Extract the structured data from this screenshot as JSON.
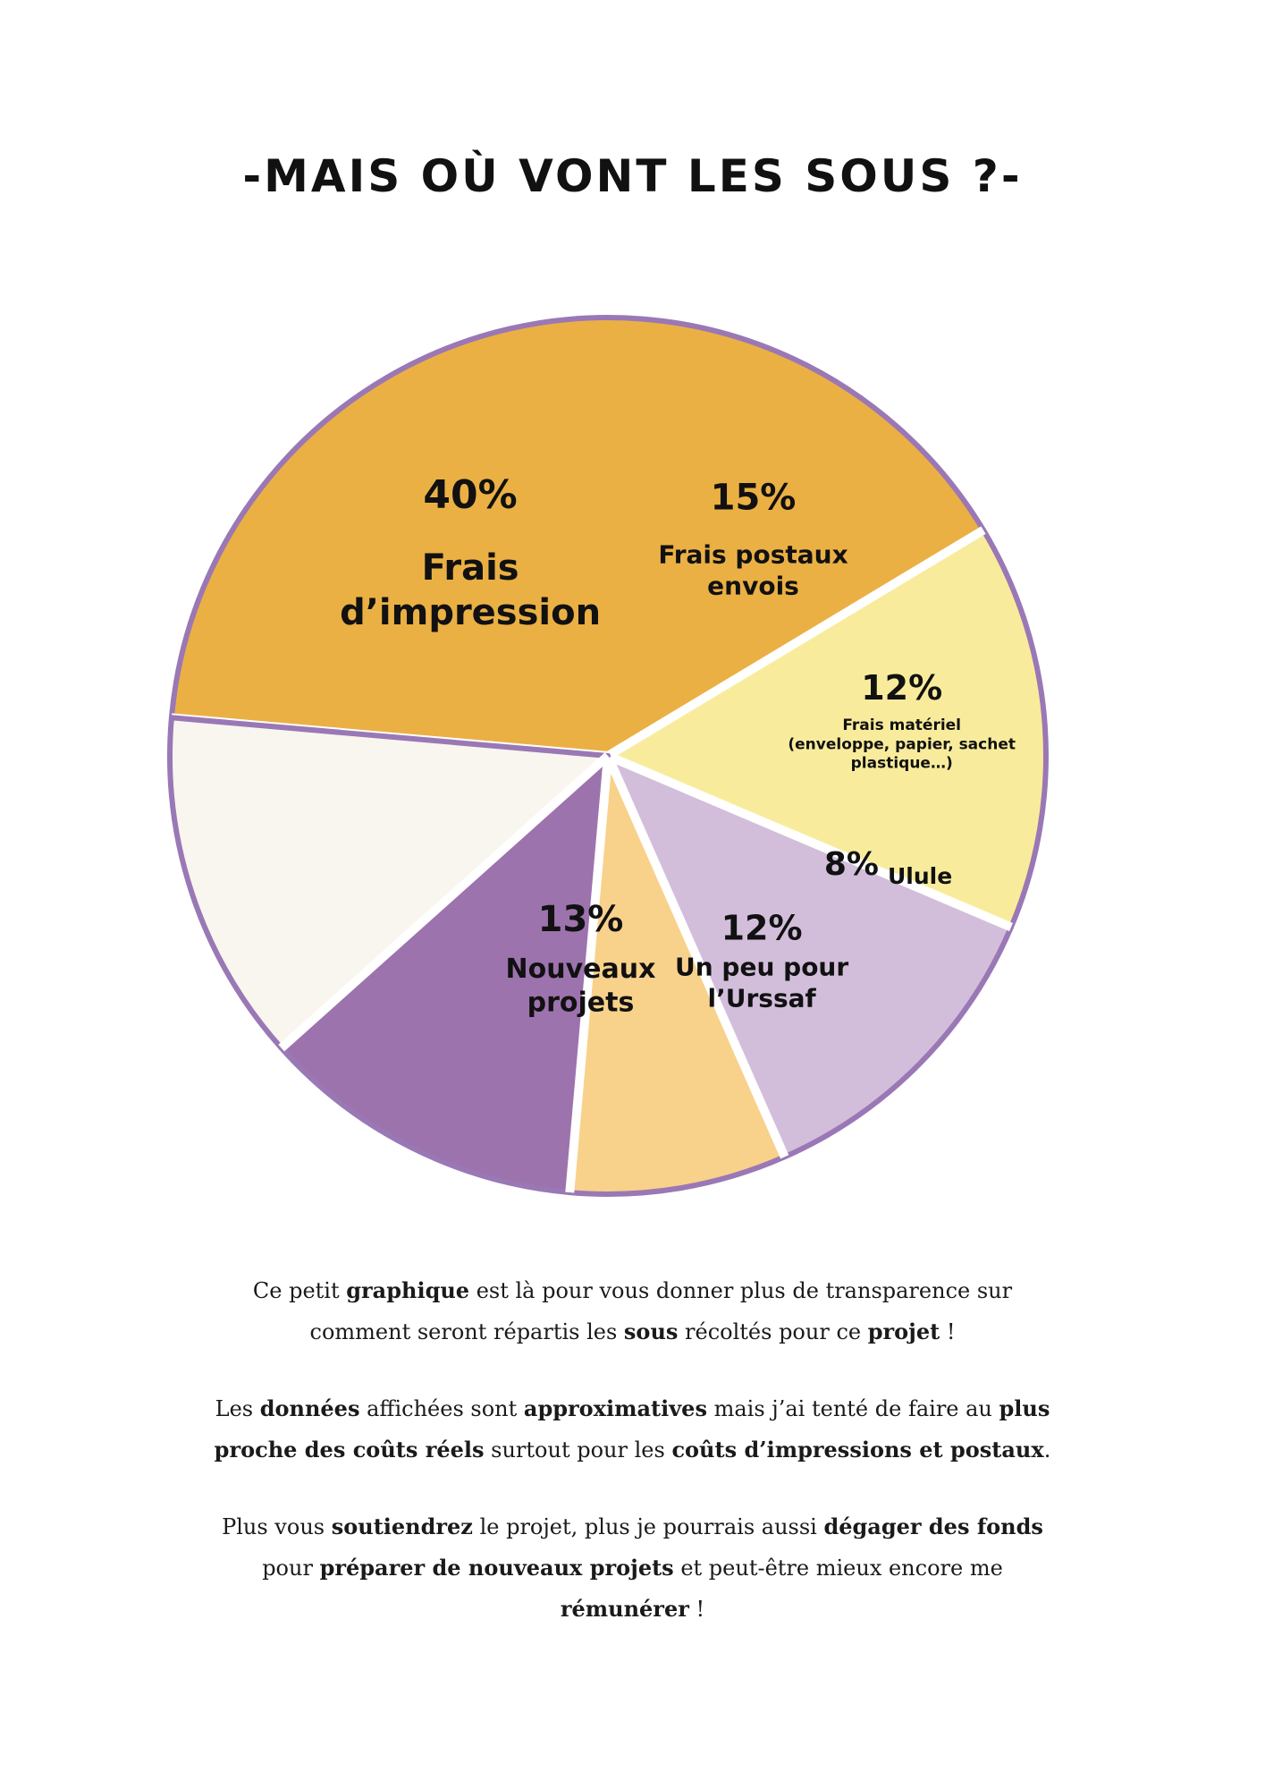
{
  "title": "-MAIS OÙ VONT LES SOUS ?-",
  "chart_data": {
    "type": "pie",
    "title": "-MAIS OÙ VONT LES SOUS ?-",
    "unit": "%",
    "slices": [
      {
        "label": "Frais d’impression",
        "value": 40,
        "value_text": "40%",
        "color": "#EBB044"
      },
      {
        "label": "Frais postaux envois",
        "value": 15,
        "value_text": "15%",
        "color": "#F8EC9C"
      },
      {
        "label": "Frais matériel (enveloppe, papier, sachet plastique…)",
        "value": 12,
        "value_text": "12%",
        "color": "#D2BEDB"
      },
      {
        "label": "Ulule",
        "value": 8,
        "value_text": "8%",
        "color": "#F8D18B"
      },
      {
        "label": "Un peu pour l’Urssaf",
        "value": 12,
        "value_text": "12%",
        "color": "#9D73AE"
      },
      {
        "label": "Nouveaux projets",
        "value": 13,
        "value_text": "13%",
        "color": "#F8F6EE"
      }
    ],
    "outline_color": "#9A78B5"
  },
  "paragraphs": [
    [
      {
        "t": "Ce petit ",
        "b": false
      },
      {
        "t": "graphique",
        "b": true
      },
      {
        "t": " est là pour vous donner plus de transparence sur comment seront répartis les ",
        "b": false
      },
      {
        "t": "sous",
        "b": true
      },
      {
        "t": " récoltés pour ce ",
        "b": false
      },
      {
        "t": "projet",
        "b": true
      },
      {
        "t": " !",
        "b": false
      }
    ],
    [
      {
        "t": "Les ",
        "b": false
      },
      {
        "t": "données",
        "b": true
      },
      {
        "t": " affichées sont ",
        "b": false
      },
      {
        "t": "approximatives",
        "b": true
      },
      {
        "t": " mais j’ai tenté de faire au ",
        "b": false
      },
      {
        "t": "plus proche des coûts réels",
        "b": true
      },
      {
        "t": " surtout pour les ",
        "b": false
      },
      {
        "t": "coûts d’impressions et postaux",
        "b": true
      },
      {
        "t": ".",
        "b": false
      }
    ],
    [
      {
        "t": "Plus vous ",
        "b": false
      },
      {
        "t": "soutiendrez",
        "b": true
      },
      {
        "t": " le projet, plus je pourrais aussi ",
        "b": false
      },
      {
        "t": "dégager des fonds",
        "b": true
      },
      {
        "t": " pour ",
        "b": false
      },
      {
        "t": "préparer de nouveaux projets",
        "b": true
      },
      {
        "t": " et peut-être mieux encore me ",
        "b": false
      },
      {
        "t": "rémunérer",
        "b": true
      },
      {
        "t": " !",
        "b": false
      }
    ]
  ]
}
